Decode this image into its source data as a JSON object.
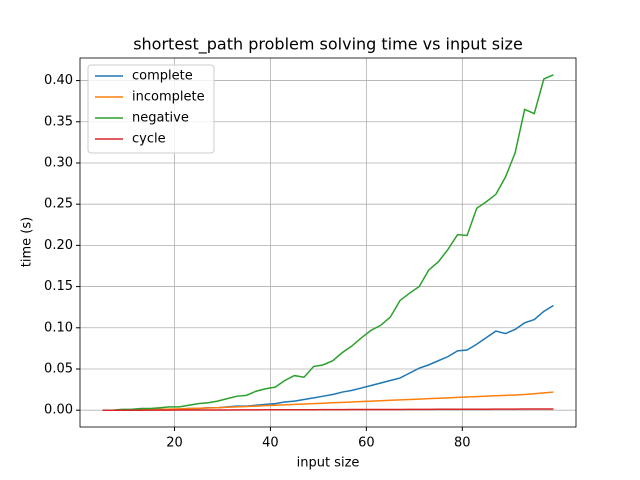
{
  "chart_data": {
    "type": "line",
    "title": "shortest_path problem solving time vs input size",
    "xlabel": "input size",
    "ylabel": "time (s)",
    "x": [
      5,
      7,
      9,
      11,
      13,
      15,
      17,
      19,
      21,
      23,
      25,
      27,
      29,
      31,
      33,
      35,
      37,
      39,
      41,
      43,
      45,
      47,
      49,
      51,
      53,
      55,
      57,
      59,
      61,
      63,
      65,
      67,
      69,
      71,
      73,
      75,
      77,
      79,
      81,
      83,
      85,
      87,
      89,
      91,
      93,
      95,
      97,
      99
    ],
    "series": [
      {
        "name": "complete",
        "color": "#1f77b4",
        "values": [
          0,
          0,
          0,
          0,
          0.0005,
          0.001,
          0.001,
          0.001,
          0.001,
          0.002,
          0.002,
          0.003,
          0.003,
          0.004,
          0.005,
          0.005,
          0.006,
          0.007,
          0.008,
          0.01,
          0.011,
          0.013,
          0.015,
          0.017,
          0.019,
          0.022,
          0.024,
          0.027,
          0.03,
          0.033,
          0.036,
          0.039,
          0.045,
          0.051,
          0.055,
          0.06,
          0.065,
          0.072,
          0.073,
          0.08,
          0.088,
          0.096,
          0.093,
          0.098,
          0.106,
          0.11,
          0.12,
          0.127
        ]
      },
      {
        "name": "incomplete",
        "color": "#ff7f0e",
        "values": [
          0,
          0,
          0,
          0.0003,
          0.0005,
          0.0008,
          0.001,
          0.0013,
          0.0016,
          0.002,
          0.0023,
          0.0027,
          0.003,
          0.0035,
          0.004,
          0.0045,
          0.005,
          0.0055,
          0.006,
          0.0065,
          0.007,
          0.0075,
          0.008,
          0.0085,
          0.009,
          0.0095,
          0.01,
          0.0105,
          0.011,
          0.0115,
          0.012,
          0.0125,
          0.013,
          0.0135,
          0.014,
          0.0145,
          0.015,
          0.0155,
          0.016,
          0.0165,
          0.017,
          0.0175,
          0.018,
          0.0185,
          0.019,
          0.02,
          0.021,
          0.022
        ]
      },
      {
        "name": "negative",
        "color": "#2ca02c",
        "values": [
          0,
          0,
          0.001,
          0.001,
          0.002,
          0.002,
          0.003,
          0.004,
          0.004,
          0.006,
          0.008,
          0.009,
          0.011,
          0.014,
          0.017,
          0.018,
          0.023,
          0.026,
          0.028,
          0.036,
          0.042,
          0.04,
          0.053,
          0.055,
          0.06,
          0.07,
          0.078,
          0.088,
          0.097,
          0.103,
          0.113,
          0.133,
          0.142,
          0.15,
          0.17,
          0.18,
          0.195,
          0.213,
          0.212,
          0.245,
          0.253,
          0.262,
          0.283,
          0.312,
          0.365,
          0.36,
          0.402,
          0.407
        ]
      },
      {
        "name": "cycle",
        "color": "#d62728",
        "values": [
          0,
          0,
          0,
          0,
          0,
          0.0001,
          0.0001,
          0.0001,
          0.0002,
          0.0002,
          0.0002,
          0.0003,
          0.0003,
          0.0003,
          0.0004,
          0.0004,
          0.0004,
          0.0005,
          0.0005,
          0.0005,
          0.0006,
          0.0006,
          0.0006,
          0.0007,
          0.0007,
          0.0007,
          0.0008,
          0.0008,
          0.0008,
          0.0009,
          0.0009,
          0.0009,
          0.001,
          0.001,
          0.001,
          0.0011,
          0.0011,
          0.0011,
          0.0012,
          0.0012,
          0.0012,
          0.0013,
          0.0013,
          0.0013,
          0.0014,
          0.0014,
          0.0015,
          0.0015
        ]
      }
    ],
    "xlim": [
      0.3,
      103.7
    ],
    "ylim": [
      -0.0204,
      0.4274
    ],
    "xticks": [
      20,
      40,
      60,
      80
    ],
    "yticks": [
      {
        "value": 0,
        "label": "0.00"
      },
      {
        "value": 0.05,
        "label": "0.05"
      },
      {
        "value": 0.1,
        "label": "0.10"
      },
      {
        "value": 0.15,
        "label": "0.15"
      },
      {
        "value": 0.2,
        "label": "0.20"
      },
      {
        "value": 0.25,
        "label": "0.25"
      },
      {
        "value": 0.3,
        "label": "0.30"
      },
      {
        "value": 0.35,
        "label": "0.35"
      },
      {
        "value": 0.4,
        "label": "0.40"
      }
    ],
    "grid": true,
    "legend": "upper left"
  }
}
